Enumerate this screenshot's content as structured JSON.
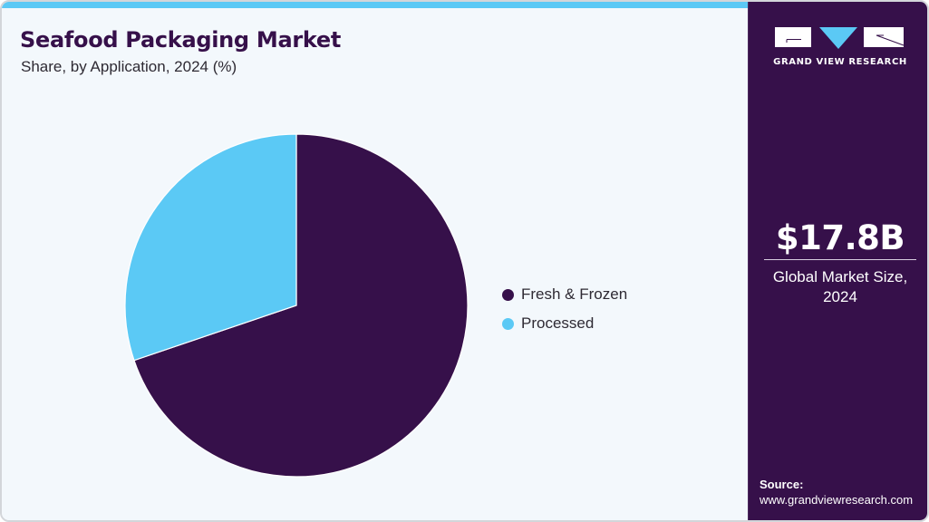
{
  "header": {
    "title": "Seafood Packaging Market",
    "subtitle": "Share, by Application, 2024 (%)"
  },
  "legend": [
    {
      "label": "Fresh & Frozen",
      "color": "#36104a"
    },
    {
      "label": "Processed",
      "color": "#5bc9f5"
    }
  ],
  "sidebar": {
    "logo_text": "GRAND VIEW RESEARCH",
    "market_value": "$17.8B",
    "market_label_line1": "Global Market Size,",
    "market_label_line2": "2024",
    "source_label": "Source:",
    "source_url": "www.grandviewresearch.com"
  },
  "colors": {
    "brand_purple": "#36104a",
    "accent_cyan": "#5bc9f5",
    "background": "#f3f8fc"
  },
  "chart_data": {
    "type": "pie",
    "title": "Seafood Packaging Market",
    "subtitle": "Share, by Application, 2024 (%)",
    "categories": [
      "Fresh & Frozen",
      "Processed"
    ],
    "values": [
      69.8,
      30.2
    ],
    "colors": [
      "#36104a",
      "#5bc9f5"
    ],
    "start_angle_deg": 0,
    "direction": "clockwise",
    "legend_position": "right",
    "data_labels": false
  }
}
